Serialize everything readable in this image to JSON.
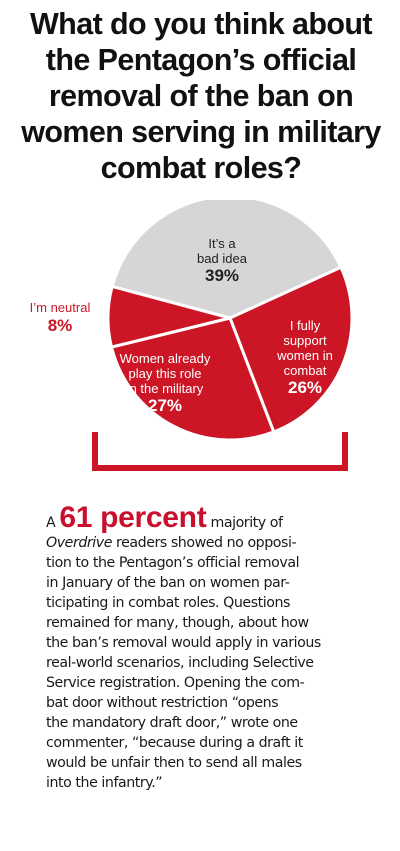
{
  "colors": {
    "accent": "#cc1626",
    "slice_gray": "#d6d6d6",
    "text": "#111111"
  },
  "title": "What do you think about the Pentagon’s official removal of the ban on women serving in military combat roles?",
  "chart_data": {
    "type": "pie",
    "title": "What do you think about the Pentagon’s official removal of the ban on women serving in military combat roles?",
    "slices": [
      {
        "label": "It’s a bad idea",
        "label_lines": [
          "It’s a",
          "bad idea"
        ],
        "value": 39,
        "display": "39%",
        "color": "#d6d6d6"
      },
      {
        "label": "I fully support women in combat",
        "label_lines": [
          "I fully",
          "support",
          "women in",
          "combat"
        ],
        "value": 26,
        "display": "26%",
        "color": "#cc1626"
      },
      {
        "label": "Women already play this role in the military",
        "label_lines": [
          "Women already",
          "play this role",
          "in the military"
        ],
        "value": 27,
        "display": "27%",
        "color": "#cc1626"
      },
      {
        "label": "I’m neutral",
        "label_lines": [
          "I’m neutral"
        ],
        "value": 8,
        "display": "8%",
        "color": "#cc1626"
      }
    ],
    "legend": "none",
    "bracket": "red bracket under the three red slices"
  },
  "article": {
    "lead": "A",
    "highlight": "61 percent",
    "line1_rest": "majority of",
    "publication": "Overdrive",
    "after_publication": "readers showed no opposi-",
    "lines": [
      "tion to the Pentagon’s official removal",
      "in January of the ban on women par-",
      "ticipating in combat roles. Questions",
      "remained for many, though, about how",
      "the ban’s removal would apply in various",
      "real-world scenarios, including Selective",
      "Service registration. Opening the com-",
      "bat door without restriction “opens",
      "the mandatory draft door,” wrote one",
      "commenter, “because during a draft it",
      "would be unfair then to send all males",
      "into the infantry.”"
    ]
  }
}
